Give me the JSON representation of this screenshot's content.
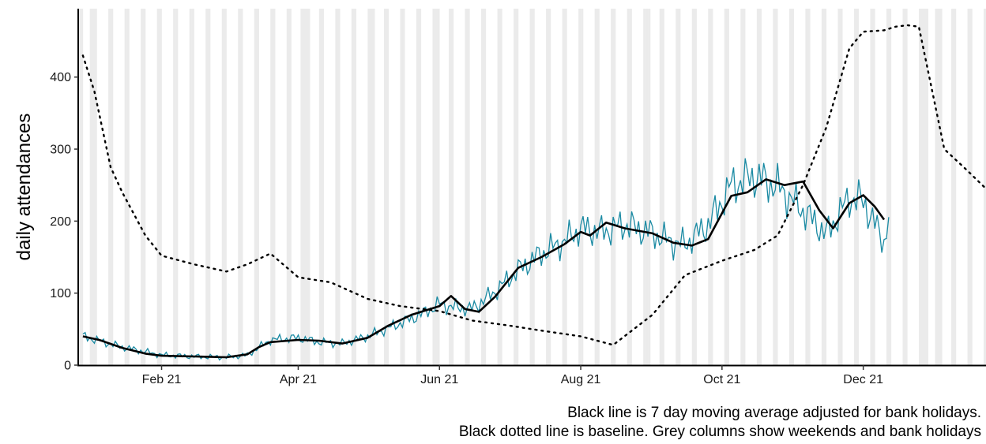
{
  "chart_data": {
    "type": "line",
    "ylabel": "daily attendances",
    "ylim": [
      0,
      495
    ],
    "yticks": [
      0,
      100,
      200,
      300,
      400
    ],
    "xlim": [
      "2020-12-27",
      "2022-01-23"
    ],
    "xtick_labels": [
      {
        "date": "2021-02-01",
        "label": "Feb 21"
      },
      {
        "date": "2021-04-01",
        "label": "Apr 21"
      },
      {
        "date": "2021-06-01",
        "label": "Jun 21"
      },
      {
        "date": "2021-08-01",
        "label": "Aug 21"
      },
      {
        "date": "2021-10-01",
        "label": "Oct 21"
      },
      {
        "date": "2021-12-01",
        "label": "Dec 21"
      }
    ],
    "shaded_columns": "weekends and bank holidays",
    "bank_holidays": [
      "2020-12-28",
      "2021-01-01",
      "2021-04-02",
      "2021-04-05",
      "2021-05-03",
      "2021-05-31",
      "2021-08-30",
      "2021-12-27",
      "2021-12-28",
      "2022-01-03"
    ],
    "colors": {
      "daily": "#1a8aa3",
      "average": "#000000",
      "baseline": "#000000",
      "shade": "#ebebeb"
    },
    "series": [
      {
        "style": "thin teal line (daily attendances)",
        "x": [
          "2020-12-29",
          "2021-01-15",
          "2021-02-01",
          "2021-02-15",
          "2021-03-01",
          "2021-03-10",
          "2021-03-20",
          "2021-04-01",
          "2021-04-10",
          "2021-04-20",
          "2021-05-01",
          "2021-05-15",
          "2021-05-25",
          "2021-06-01",
          "2021-06-08",
          "2021-06-15",
          "2021-06-25",
          "2021-07-05",
          "2021-07-15",
          "2021-07-25",
          "2021-08-01",
          "2021-08-10",
          "2021-08-20",
          "2021-09-01",
          "2021-09-10",
          "2021-09-15",
          "2021-09-25",
          "2021-10-05",
          "2021-10-15",
          "2021-10-25",
          "2021-11-05",
          "2021-11-15",
          "2021-11-25",
          "2021-12-01",
          "2021-12-10",
          "2021-12-12"
        ],
        "y": [
          40,
          25,
          14,
          12,
          11,
          14,
          35,
          38,
          32,
          30,
          40,
          58,
          72,
          85,
          80,
          78,
          102,
          132,
          155,
          172,
          190,
          185,
          195,
          183,
          170,
          168,
          195,
          250,
          262,
          248,
          215,
          182,
          232,
          228,
          170,
          208
        ],
        "volatility": 0.08
      },
      {
        "name": "Black line is 7 day moving average adjusted for bank holidays.",
        "x": [
          "2020-12-29",
          "2021-01-05",
          "2021-01-15",
          "2021-01-25",
          "2021-02-01",
          "2021-02-15",
          "2021-03-01",
          "2021-03-10",
          "2021-03-15",
          "2021-03-20",
          "2021-04-01",
          "2021-04-10",
          "2021-04-20",
          "2021-05-01",
          "2021-05-10",
          "2021-05-20",
          "2021-06-01",
          "2021-06-06",
          "2021-06-12",
          "2021-06-18",
          "2021-06-25",
          "2021-07-05",
          "2021-07-15",
          "2021-07-25",
          "2021-08-01",
          "2021-08-05",
          "2021-08-12",
          "2021-08-20",
          "2021-09-01",
          "2021-09-10",
          "2021-09-18",
          "2021-09-25",
          "2021-10-05",
          "2021-10-12",
          "2021-10-20",
          "2021-10-28",
          "2021-11-05",
          "2021-11-12",
          "2021-11-18",
          "2021-11-25",
          "2021-12-01",
          "2021-12-06",
          "2021-12-10"
        ],
        "y": [
          40,
          35,
          24,
          16,
          13,
          12,
          11,
          15,
          25,
          32,
          35,
          34,
          30,
          38,
          55,
          70,
          82,
          96,
          78,
          74,
          95,
          135,
          150,
          168,
          185,
          180,
          198,
          190,
          183,
          170,
          166,
          175,
          235,
          240,
          258,
          250,
          255,
          215,
          190,
          225,
          236,
          220,
          202
        ]
      },
      {
        "name": "Black dotted line is baseline.",
        "dotted": true,
        "x": [
          "2020-12-29",
          "2021-01-03",
          "2021-01-10",
          "2021-01-15",
          "2021-01-25",
          "2021-02-01",
          "2021-02-15",
          "2021-03-01",
          "2021-03-10",
          "2021-03-20",
          "2021-04-01",
          "2021-04-15",
          "2021-05-01",
          "2021-05-15",
          "2021-06-01",
          "2021-06-15",
          "2021-07-01",
          "2021-07-15",
          "2021-08-01",
          "2021-08-15",
          "2021-09-01",
          "2021-09-15",
          "2021-10-01",
          "2021-10-15",
          "2021-10-25",
          "2021-11-05",
          "2021-11-15",
          "2021-11-25",
          "2021-12-01",
          "2021-12-10",
          "2021-12-15",
          "2021-12-20",
          "2021-12-25",
          "2022-01-05",
          "2022-01-15",
          "2022-01-23"
        ],
        "y": [
          430,
          380,
          275,
          240,
          180,
          152,
          140,
          130,
          140,
          155,
          122,
          115,
          92,
          82,
          75,
          62,
          55,
          48,
          40,
          28,
          70,
          125,
          145,
          160,
          180,
          250,
          330,
          440,
          463,
          465,
          470,
          472,
          470,
          300,
          270,
          245
        ]
      }
    ]
  },
  "caption": {
    "line1": "Black line is 7 day moving average adjusted for bank holidays.",
    "line2": "Black dotted line is baseline. Grey columns show weekends and bank holidays"
  }
}
